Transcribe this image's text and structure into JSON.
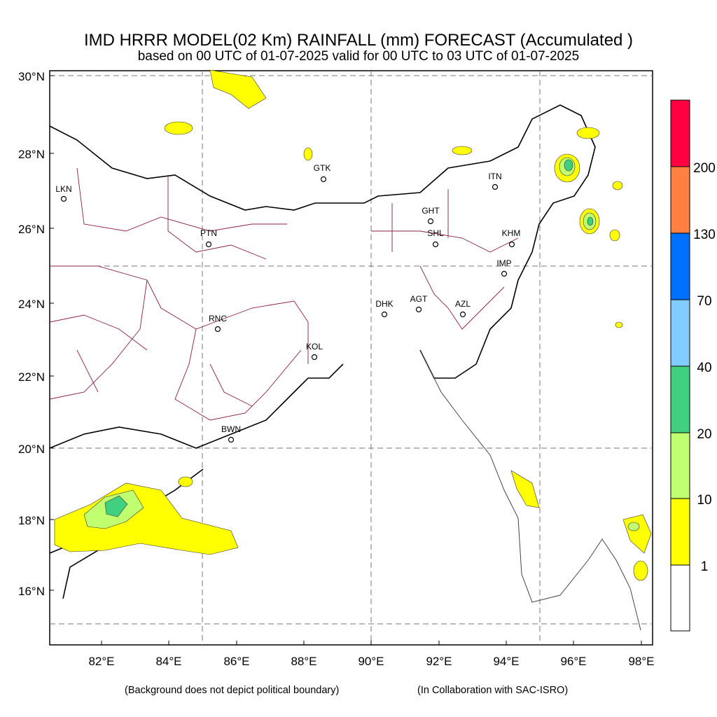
{
  "title": {
    "line1": "IMD HRRR MODEL(02 Km)  RAINFALL (mm) FORECAST  (Accumulated )",
    "line2": "based on 00 UTC of 01-07-2025 valid for 00 UTC to 03 UTC of 01-07-2025"
  },
  "axes": {
    "lat_labels": [
      "30°N",
      "28°N",
      "26°N",
      "24°N",
      "22°N",
      "20°N",
      "18°N",
      "16°N"
    ],
    "lon_labels": [
      "82°E",
      "84°E",
      "86°E",
      "88°E",
      "90°E",
      "92°E",
      "94°E",
      "96°E",
      "98°E"
    ]
  },
  "cities": [
    {
      "code": "LKN"
    },
    {
      "code": "GTK"
    },
    {
      "code": "ITN"
    },
    {
      "code": "PTN"
    },
    {
      "code": "GHT"
    },
    {
      "code": "SHL"
    },
    {
      "code": "KHM"
    },
    {
      "code": "IMP"
    },
    {
      "code": "DHK"
    },
    {
      "code": "AGT"
    },
    {
      "code": "AZL"
    },
    {
      "code": "RNC"
    },
    {
      "code": "KOL"
    },
    {
      "code": "BWN"
    }
  ],
  "colorbar": {
    "colors": [
      "#ffffff",
      "#ffff00",
      "#c0ff70",
      "#40d080",
      "#80ccff",
      "#0070ff",
      "#ff8040",
      "#ff0040"
    ],
    "labels": [
      "1",
      "10",
      "20",
      "40",
      "70",
      "130",
      "200"
    ]
  },
  "footer": {
    "left": "(Background does not depict political boundary)",
    "right": "(In Collaboration with SAC-ISRO)"
  }
}
